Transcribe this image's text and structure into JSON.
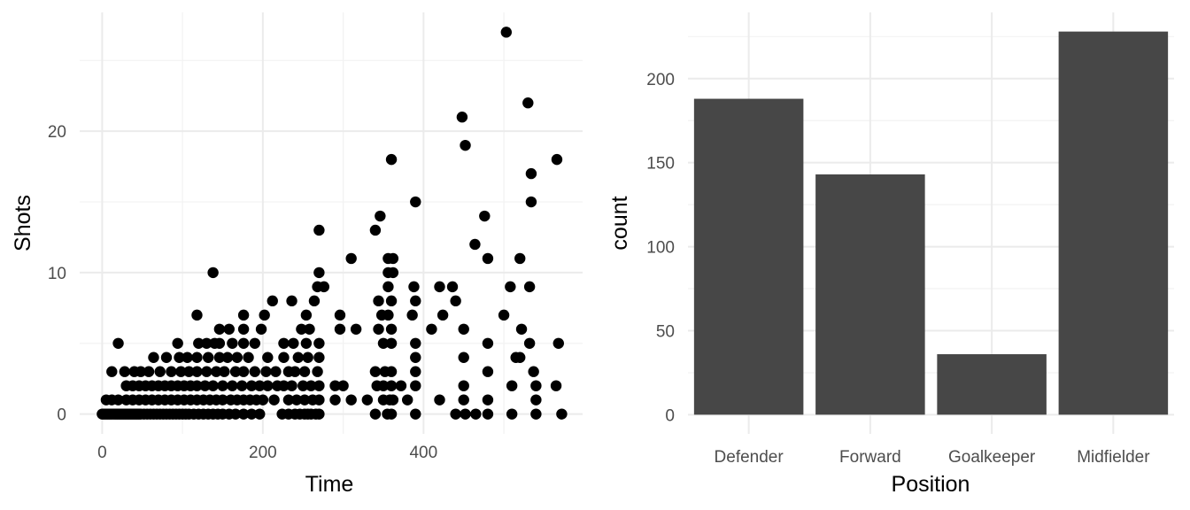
{
  "chart_data": [
    {
      "type": "scatter",
      "title": "",
      "xlabel": "Time",
      "ylabel": "Shots",
      "xlim": [
        -28,
        598
      ],
      "ylim": [
        -1.4,
        28.4
      ],
      "xticks": [
        0,
        200,
        400
      ],
      "xtick_labels": [
        "0",
        "200",
        "400"
      ],
      "xminor": [
        100,
        300,
        500
      ],
      "yticks": [
        0,
        10,
        20
      ],
      "ytick_labels": [
        "0",
        "10",
        "20"
      ],
      "yminor": [
        5,
        15,
        25
      ],
      "grid": true,
      "point_color": "#000000",
      "points": [
        [
          0,
          0
        ],
        [
          2,
          0
        ],
        [
          4,
          0
        ],
        [
          6,
          0
        ],
        [
          8,
          0
        ],
        [
          10,
          0
        ],
        [
          12,
          0
        ],
        [
          14,
          0
        ],
        [
          16,
          0
        ],
        [
          18,
          0
        ],
        [
          20,
          0
        ],
        [
          22,
          0
        ],
        [
          24,
          0
        ],
        [
          26,
          0
        ],
        [
          28,
          0
        ],
        [
          30,
          0
        ],
        [
          32,
          0
        ],
        [
          34,
          0
        ],
        [
          36,
          0
        ],
        [
          38,
          0
        ],
        [
          40,
          0
        ],
        [
          42,
          0
        ],
        [
          44,
          0
        ],
        [
          46,
          0
        ],
        [
          48,
          0
        ],
        [
          52,
          0
        ],
        [
          56,
          0
        ],
        [
          60,
          0
        ],
        [
          64,
          0
        ],
        [
          68,
          0
        ],
        [
          72,
          0
        ],
        [
          76,
          0
        ],
        [
          80,
          0
        ],
        [
          84,
          0
        ],
        [
          88,
          0
        ],
        [
          92,
          0
        ],
        [
          96,
          0
        ],
        [
          100,
          0
        ],
        [
          104,
          0
        ],
        [
          108,
          0
        ],
        [
          114,
          0
        ],
        [
          120,
          0
        ],
        [
          126,
          0
        ],
        [
          132,
          0
        ],
        [
          138,
          0
        ],
        [
          144,
          0
        ],
        [
          150,
          0
        ],
        [
          158,
          0
        ],
        [
          166,
          0
        ],
        [
          176,
          0
        ],
        [
          186,
          0
        ],
        [
          196,
          0
        ],
        [
          224,
          0
        ],
        [
          232,
          0
        ],
        [
          240,
          0
        ],
        [
          246,
          0
        ],
        [
          252,
          0
        ],
        [
          256,
          0
        ],
        [
          260,
          0
        ],
        [
          266,
          0
        ],
        [
          270,
          0
        ],
        [
          340,
          0
        ],
        [
          355,
          0
        ],
        [
          360,
          0
        ],
        [
          390,
          0
        ],
        [
          440,
          0
        ],
        [
          452,
          0
        ],
        [
          465,
          0
        ],
        [
          480,
          0
        ],
        [
          510,
          0
        ],
        [
          540,
          0
        ],
        [
          572,
          0
        ],
        [
          5,
          1
        ],
        [
          12,
          1
        ],
        [
          20,
          1
        ],
        [
          30,
          1
        ],
        [
          38,
          1
        ],
        [
          46,
          1
        ],
        [
          54,
          1
        ],
        [
          62,
          1
        ],
        [
          70,
          1
        ],
        [
          78,
          1
        ],
        [
          86,
          1
        ],
        [
          94,
          1
        ],
        [
          102,
          1
        ],
        [
          110,
          1
        ],
        [
          118,
          1
        ],
        [
          126,
          1
        ],
        [
          134,
          1
        ],
        [
          142,
          1
        ],
        [
          150,
          1
        ],
        [
          160,
          1
        ],
        [
          168,
          1
        ],
        [
          176,
          1
        ],
        [
          184,
          1
        ],
        [
          192,
          1
        ],
        [
          200,
          1
        ],
        [
          214,
          1
        ],
        [
          232,
          1
        ],
        [
          242,
          1
        ],
        [
          252,
          1
        ],
        [
          262,
          1
        ],
        [
          270,
          1
        ],
        [
          290,
          1
        ],
        [
          310,
          1
        ],
        [
          330,
          1
        ],
        [
          350,
          1
        ],
        [
          358,
          1
        ],
        [
          362,
          1
        ],
        [
          380,
          1
        ],
        [
          420,
          1
        ],
        [
          450,
          1
        ],
        [
          480,
          1
        ],
        [
          540,
          1
        ],
        [
          30,
          2
        ],
        [
          38,
          2
        ],
        [
          46,
          2
        ],
        [
          54,
          2
        ],
        [
          62,
          2
        ],
        [
          70,
          2
        ],
        [
          78,
          2
        ],
        [
          86,
          2
        ],
        [
          94,
          2
        ],
        [
          102,
          2
        ],
        [
          110,
          2
        ],
        [
          118,
          2
        ],
        [
          128,
          2
        ],
        [
          138,
          2
        ],
        [
          150,
          2
        ],
        [
          162,
          2
        ],
        [
          174,
          2
        ],
        [
          186,
          2
        ],
        [
          196,
          2
        ],
        [
          206,
          2
        ],
        [
          218,
          2
        ],
        [
          226,
          2
        ],
        [
          236,
          2
        ],
        [
          250,
          2
        ],
        [
          260,
          2
        ],
        [
          270,
          2
        ],
        [
          290,
          2
        ],
        [
          300,
          2
        ],
        [
          342,
          2
        ],
        [
          350,
          2
        ],
        [
          360,
          2
        ],
        [
          372,
          2
        ],
        [
          390,
          2
        ],
        [
          450,
          2
        ],
        [
          510,
          2
        ],
        [
          540,
          2
        ],
        [
          565,
          2
        ],
        [
          12,
          3
        ],
        [
          28,
          3
        ],
        [
          40,
          3
        ],
        [
          48,
          3
        ],
        [
          58,
          3
        ],
        [
          72,
          3
        ],
        [
          86,
          3
        ],
        [
          98,
          3
        ],
        [
          108,
          3
        ],
        [
          118,
          3
        ],
        [
          130,
          3
        ],
        [
          142,
          3
        ],
        [
          152,
          3
        ],
        [
          166,
          3
        ],
        [
          176,
          3
        ],
        [
          190,
          3
        ],
        [
          204,
          3
        ],
        [
          216,
          3
        ],
        [
          232,
          3
        ],
        [
          240,
          3
        ],
        [
          252,
          3
        ],
        [
          268,
          3
        ],
        [
          340,
          3
        ],
        [
          352,
          3
        ],
        [
          360,
          3
        ],
        [
          390,
          3
        ],
        [
          480,
          3
        ],
        [
          537,
          3
        ],
        [
          64,
          4
        ],
        [
          80,
          4
        ],
        [
          96,
          4
        ],
        [
          106,
          4
        ],
        [
          118,
          4
        ],
        [
          132,
          4
        ],
        [
          146,
          4
        ],
        [
          156,
          4
        ],
        [
          168,
          4
        ],
        [
          182,
          4
        ],
        [
          206,
          4
        ],
        [
          226,
          4
        ],
        [
          244,
          4
        ],
        [
          256,
          4
        ],
        [
          270,
          4
        ],
        [
          390,
          4
        ],
        [
          450,
          4
        ],
        [
          515,
          4
        ],
        [
          520,
          4
        ],
        [
          20,
          5
        ],
        [
          94,
          5
        ],
        [
          120,
          5
        ],
        [
          130,
          5
        ],
        [
          140,
          5
        ],
        [
          146,
          5
        ],
        [
          162,
          5
        ],
        [
          176,
          5
        ],
        [
          190,
          5
        ],
        [
          226,
          5
        ],
        [
          238,
          5
        ],
        [
          254,
          5
        ],
        [
          270,
          5
        ],
        [
          350,
          5
        ],
        [
          360,
          5
        ],
        [
          390,
          5
        ],
        [
          480,
          5
        ],
        [
          532,
          5
        ],
        [
          568,
          5
        ],
        [
          146,
          6
        ],
        [
          158,
          6
        ],
        [
          176,
          6
        ],
        [
          198,
          6
        ],
        [
          248,
          6
        ],
        [
          258,
          6
        ],
        [
          296,
          6
        ],
        [
          316,
          6
        ],
        [
          344,
          6
        ],
        [
          360,
          6
        ],
        [
          410,
          6
        ],
        [
          450,
          6
        ],
        [
          522,
          6
        ],
        [
          118,
          7
        ],
        [
          176,
          7
        ],
        [
          202,
          7
        ],
        [
          254,
          7
        ],
        [
          296,
          7
        ],
        [
          348,
          7
        ],
        [
          356,
          7
        ],
        [
          386,
          7
        ],
        [
          424,
          7
        ],
        [
          500,
          7
        ],
        [
          212,
          8
        ],
        [
          236,
          8
        ],
        [
          264,
          8
        ],
        [
          344,
          8
        ],
        [
          360,
          8
        ],
        [
          390,
          8
        ],
        [
          440,
          8
        ],
        [
          268,
          9
        ],
        [
          276,
          9
        ],
        [
          356,
          9
        ],
        [
          388,
          9
        ],
        [
          420,
          9
        ],
        [
          436,
          9
        ],
        [
          508,
          9
        ],
        [
          532,
          9
        ],
        [
          138,
          10
        ],
        [
          270,
          10
        ],
        [
          356,
          10
        ],
        [
          362,
          10
        ],
        [
          310,
          11
        ],
        [
          356,
          11
        ],
        [
          362,
          11
        ],
        [
          480,
          11
        ],
        [
          520,
          11
        ],
        [
          464,
          12
        ],
        [
          270,
          13
        ],
        [
          340,
          13
        ],
        [
          346,
          14
        ],
        [
          476,
          14
        ],
        [
          390,
          15
        ],
        [
          534,
          15
        ],
        [
          534,
          17
        ],
        [
          360,
          18
        ],
        [
          566,
          18
        ],
        [
          452,
          19
        ],
        [
          448,
          21
        ],
        [
          530,
          22
        ],
        [
          503,
          27
        ]
      ]
    },
    {
      "type": "bar",
      "title": "",
      "xlabel": "Position",
      "ylabel": "count",
      "categories": [
        "Defender",
        "Forward",
        "Goalkeeper",
        "Midfielder"
      ],
      "values": [
        188,
        143,
        36,
        228
      ],
      "ylim": [
        -11.4,
        239.4
      ],
      "yticks": [
        0,
        50,
        100,
        150,
        200
      ],
      "ytick_labels": [
        "0",
        "50",
        "100",
        "150",
        "200"
      ],
      "yminor": [
        25,
        75,
        125,
        175,
        225
      ],
      "grid": true,
      "bar_color": "#474747"
    }
  ]
}
